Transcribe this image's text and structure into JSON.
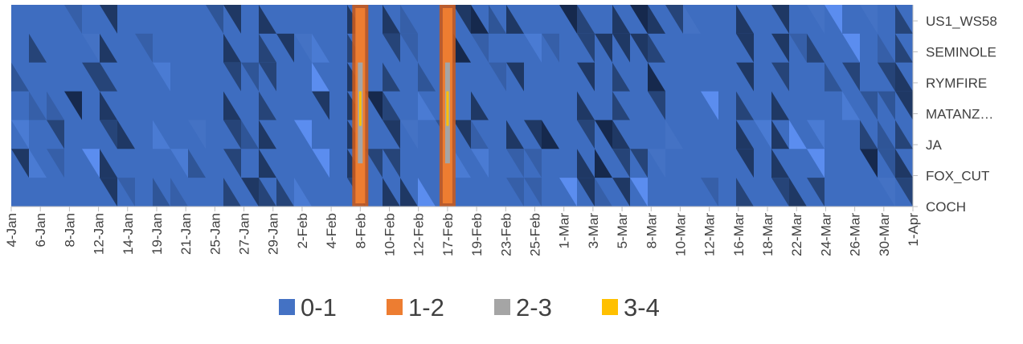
{
  "chart_data": {
    "type": "heatmap",
    "title": "",
    "xlabel": "",
    "ylabel": "",
    "x_tick_labels": [
      "4-Jan",
      "6-Jan",
      "8-Jan",
      "12-Jan",
      "14-Jan",
      "19-Jan",
      "21-Jan",
      "25-Jan",
      "27-Jan",
      "29-Jan",
      "2-Feb",
      "4-Feb",
      "8-Feb",
      "10-Feb",
      "12-Feb",
      "17-Feb",
      "19-Feb",
      "23-Feb",
      "25-Feb",
      "1-Mar",
      "3-Mar",
      "5-Mar",
      "8-Mar",
      "10-Mar",
      "12-Mar",
      "16-Mar",
      "18-Mar",
      "22-Mar",
      "24-Mar",
      "26-Mar",
      "30-Mar",
      "1-Apr"
    ],
    "y_tick_labels": [
      "US1_WS58",
      "SEMINOLE",
      "RYMFIRE",
      "MATANZ…",
      "JA",
      "FOX_CUT",
      "COCH"
    ],
    "legend": {
      "position": "bottom",
      "entries": [
        {
          "label": "0-1",
          "color": "#4472C4"
        },
        {
          "label": "1-2",
          "color": "#ED7D31"
        },
        {
          "label": "2-3",
          "color": "#A5A5A5"
        },
        {
          "label": "3-4",
          "color": "#FFC000"
        }
      ]
    },
    "highlights": [
      {
        "x": "8-Feb",
        "range": "1-3"
      },
      {
        "x": "17-Feb",
        "range": "1-3"
      }
    ]
  }
}
